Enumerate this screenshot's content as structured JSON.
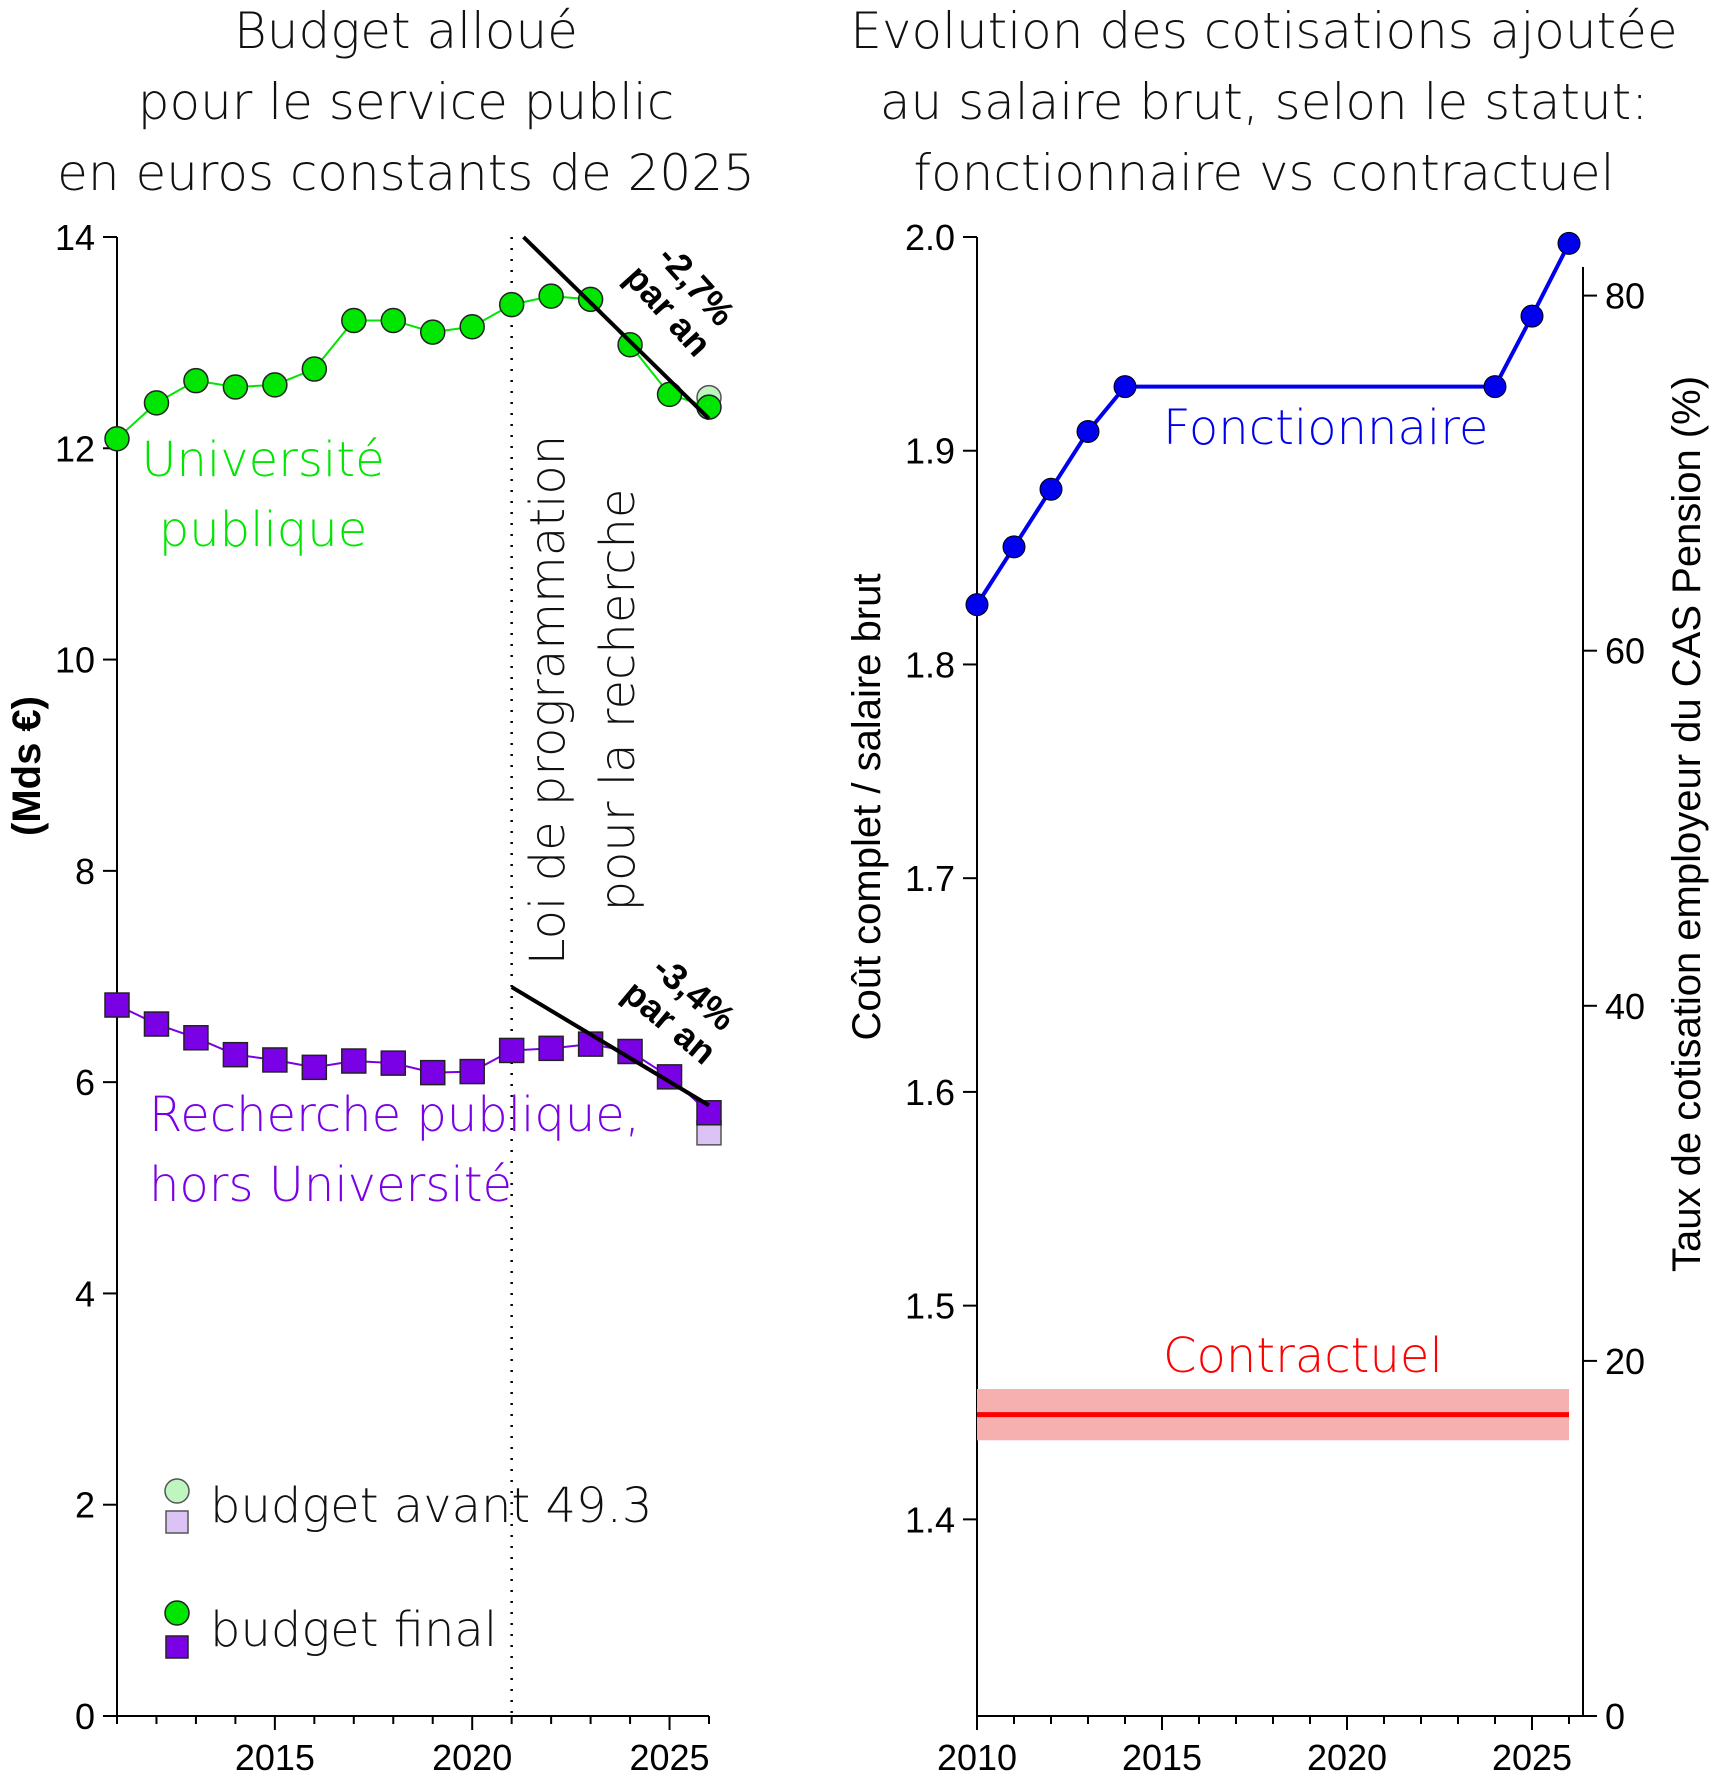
{
  "chart_data": [
    {
      "type": "line",
      "title": [
        "Budget alloué",
        "pour le service public",
        "en euros constants de 2025"
      ],
      "ylabel": "(Mds €)",
      "xlabel": "",
      "xlim": [
        2011,
        2026
      ],
      "ylim": [
        0,
        14
      ],
      "yticks": [
        "0",
        "2",
        "4",
        "6",
        "8",
        "10",
        "12",
        "14"
      ],
      "xticks": [
        "2015",
        "2020",
        "2025"
      ],
      "x": [
        2011,
        2012,
        2013,
        2014,
        2015,
        2016,
        2017,
        2018,
        2019,
        2020,
        2021,
        2022,
        2023,
        2024,
        2025,
        2026
      ],
      "series": [
        {
          "name": "Université publique",
          "label_lines": [
            "Université",
            "publique"
          ],
          "color": "#00e600",
          "marker": "circle",
          "values": [
            12.09,
            12.43,
            12.64,
            12.58,
            12.6,
            12.75,
            13.21,
            13.21,
            13.1,
            13.15,
            13.36,
            13.44,
            13.41,
            12.98,
            12.51,
            12.39
          ],
          "budget_avant_2026": 12.48,
          "trend": {
            "label_lines": [
              "-2,7%",
              "par an"
            ],
            "from": [
              2021.3,
              14.0
            ],
            "to": [
              2026.0,
              12.28
            ]
          }
        },
        {
          "name": "Recherche publique, hors Université",
          "label_lines": [
            "Recherche publique,",
            "hors Université"
          ],
          "color": "#7a00e6",
          "marker": "square",
          "values": [
            6.73,
            6.55,
            6.42,
            6.26,
            6.21,
            6.14,
            6.2,
            6.18,
            6.09,
            6.1,
            6.3,
            6.32,
            6.36,
            6.29,
            6.05,
            5.71
          ],
          "budget_avant_2026": 5.52,
          "trend": {
            "label_lines": [
              "-3,4%",
              "par an"
            ],
            "from": [
              2021.0,
              6.9
            ],
            "to": [
              2026.0,
              5.78
            ]
          }
        }
      ],
      "vline": {
        "x": 2021,
        "label_lines": [
          "Loi de programmation",
          "pour la recherche"
        ]
      },
      "legend": {
        "avant": "budget avant 49.3",
        "final": "budget final",
        "placement": "bottom-left"
      }
    },
    {
      "type": "line",
      "title": [
        "Evolution des cotisations ajoutée",
        "au salaire brut, selon le statut:",
        "fonctionnaire vs contractuel"
      ],
      "ylabel": "Coût complet / salaire brut",
      "ylabel_right": "Taux de cotisation employeur du CAS Pension (%)",
      "xlim": [
        2010,
        2026
      ],
      "ylim": [
        1.308,
        2.0
      ],
      "ylim_right": [
        0,
        83.3
      ],
      "yticks": [
        "1.4",
        "1.5",
        "1.6",
        "1.7",
        "1.8",
        "1.9",
        "2.0"
      ],
      "yticks_right": [
        "0",
        "20",
        "40",
        "60",
        "80"
      ],
      "xticks": [
        "2010",
        "2015",
        "2020",
        "2025"
      ],
      "series": [
        {
          "name": "Fonctionnaire",
          "color": "#0000ee",
          "x": [
            2010,
            2011,
            2012,
            2013,
            2014,
            2024,
            2025,
            2026
          ],
          "values": [
            1.828,
            1.855,
            1.882,
            1.909,
            1.93,
            1.93,
            1.963,
            1.997
          ]
        },
        {
          "name": "Contractuel",
          "color": "#ff0000",
          "x": [
            2010,
            2026
          ],
          "values": [
            1.449,
            1.449
          ],
          "band": [
            1.437,
            1.461
          ],
          "band_color": "#f7b0b0"
        }
      ]
    }
  ]
}
